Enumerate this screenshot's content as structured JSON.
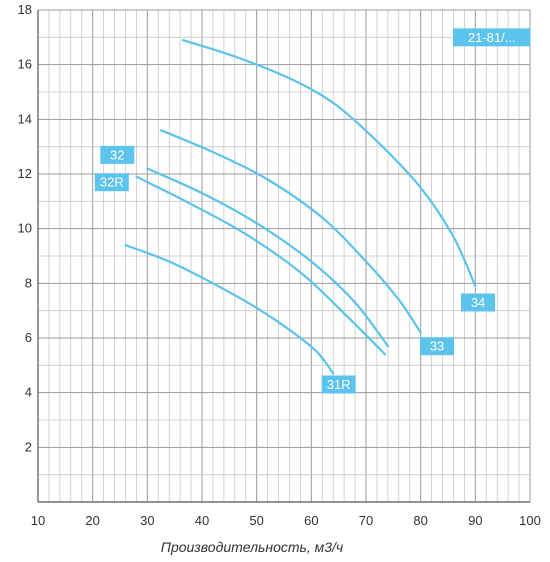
{
  "chart_data": {
    "type": "line",
    "title": "",
    "xlabel": "Производительность, м3/ч",
    "ylabel": "",
    "xlim": [
      10,
      100
    ],
    "ylim": [
      0,
      18
    ],
    "xticks": [
      10,
      20,
      30,
      40,
      50,
      60,
      70,
      80,
      90,
      100
    ],
    "yticks": [
      2,
      4,
      6,
      8,
      10,
      12,
      14,
      16,
      18
    ],
    "grid": true,
    "minor_x_step": 2,
    "minor_y_step": 1,
    "line_color": "#5bc3ec",
    "label_color": "#5bc3ec",
    "series": [
      {
        "name": "21-81/...",
        "points": [
          [
            36.5,
            16.9
          ],
          [
            46,
            16.3
          ],
          [
            56,
            15.5
          ],
          [
            64,
            14.6
          ],
          [
            72,
            13.2
          ],
          [
            80,
            11.5
          ],
          [
            86,
            9.7
          ],
          [
            90,
            7.9
          ]
        ]
      },
      {
        "name": "33",
        "points": [
          [
            32.5,
            13.6
          ],
          [
            42,
            12.8
          ],
          [
            52,
            11.8
          ],
          [
            62,
            10.4
          ],
          [
            70,
            8.8
          ],
          [
            76,
            7.4
          ],
          [
            80,
            6.2
          ]
        ]
      },
      {
        "name": "32",
        "points": [
          [
            30,
            12.2
          ],
          [
            40,
            11.3
          ],
          [
            50,
            10.2
          ],
          [
            60,
            8.8
          ],
          [
            68,
            7.3
          ],
          [
            74,
            5.7
          ]
        ]
      },
      {
        "name": "32R",
        "points": [
          [
            28,
            11.9
          ],
          [
            38,
            10.9
          ],
          [
            48,
            9.8
          ],
          [
            58,
            8.4
          ],
          [
            66,
            6.9
          ],
          [
            73.5,
            5.4
          ]
        ]
      },
      {
        "name": "31R",
        "points": [
          [
            26,
            9.4
          ],
          [
            34,
            8.8
          ],
          [
            42,
            8.0
          ],
          [
            50,
            7.1
          ],
          [
            56,
            6.3
          ],
          [
            61,
            5.5
          ],
          [
            64,
            4.7
          ]
        ]
      }
    ],
    "labels": [
      {
        "text": "21-81/...",
        "x": 93,
        "y": 17.0
      },
      {
        "text": "34",
        "x": 90.5,
        "y": 7.3
      },
      {
        "text": "33",
        "x": 83,
        "y": 5.7
      },
      {
        "text": "32",
        "x": 24.5,
        "y": 12.7
      },
      {
        "text": "32R",
        "x": 23.5,
        "y": 11.7
      },
      {
        "text": "31R",
        "x": 65,
        "y": 4.3
      }
    ]
  }
}
